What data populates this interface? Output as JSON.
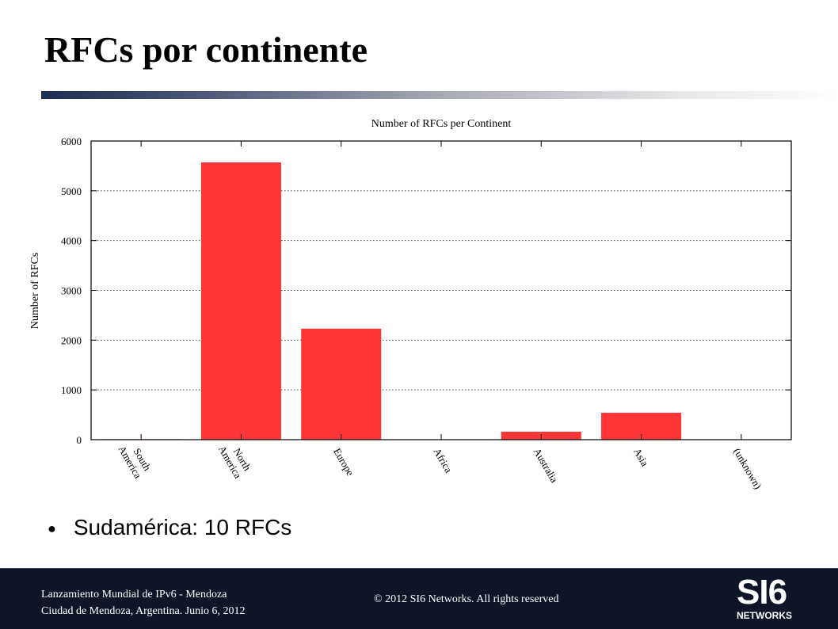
{
  "slide": {
    "title": "RFCs por continente",
    "bullet": "Sudamérica: 10 RFCs"
  },
  "footer": {
    "line1": "Lanzamiento Mundial de IPv6 - Mendoza",
    "line2": "Ciudad de Mendoza, Argentina. Junio 6, 2012",
    "copyright": "© 2012 SI6 Networks. All rights reserved",
    "logo_main": "SI6",
    "logo_sub": "NETWORKS"
  },
  "colors": {
    "bar": "#ff3538",
    "footer_bg": "#0d1526",
    "title_bar_dark": "#1e2d55"
  },
  "chart_data": {
    "type": "bar",
    "title": "Number of RFCs per Continent",
    "xlabel": "",
    "ylabel": "Number of RFCs",
    "categories": [
      "South America",
      "North America",
      "Europe",
      "Africa",
      "Australia",
      "Asia",
      "(unknown)"
    ],
    "category_lines": [
      [
        "South",
        "America"
      ],
      [
        "North",
        "America"
      ],
      [
        "Europe"
      ],
      [
        "Africa"
      ],
      [
        "Australia"
      ],
      [
        "Asia"
      ],
      [
        "(unknown)"
      ]
    ],
    "values": [
      10,
      5570,
      2230,
      0,
      160,
      540,
      0
    ],
    "ylim": [
      0,
      6000
    ],
    "yticks": [
      0,
      1000,
      2000,
      3000,
      4000,
      5000,
      6000
    ],
    "grid": true,
    "legend": "none"
  }
}
